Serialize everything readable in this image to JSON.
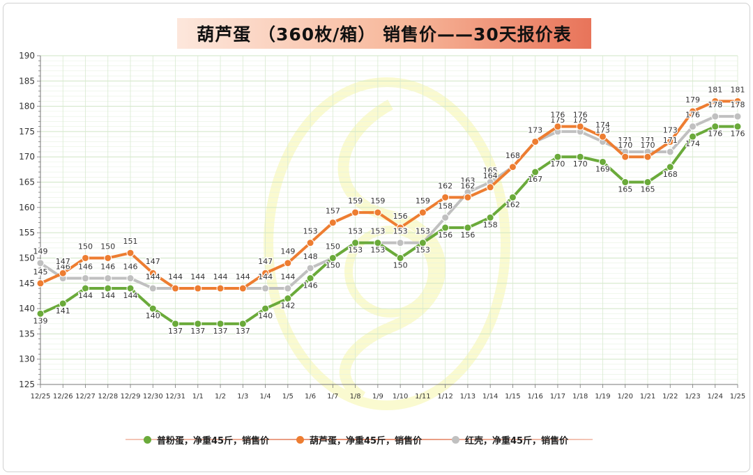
{
  "title": "葫芦蛋 （360枚/箱） 销售价——30天报价表",
  "legend": [
    {
      "label": "普粉蛋，净重45斤，销售价",
      "color": "#6aaa3a"
    },
    {
      "label": "葫芦蛋，净重45斤，销售价",
      "color": "#ed7d31"
    },
    {
      "label": "红壳，净重45斤，销售价",
      "color": "#c0c0c0"
    }
  ],
  "chart_data": {
    "type": "line",
    "title": "葫芦蛋 （360枚/箱） 销售价——30天报价表",
    "xlabel": "",
    "ylabel": "",
    "ylim": [
      125,
      190
    ],
    "ytick_step": 5,
    "grid": true,
    "legend_position": "bottom",
    "categories": [
      "12/25",
      "12/26",
      "12/27",
      "12/28",
      "12/29",
      "12/30",
      "12/31",
      "1/1",
      "1/2",
      "1/3",
      "1/4",
      "1/5",
      "1/6",
      "1/7",
      "1/8",
      "1/9",
      "1/10",
      "1/11",
      "1/12",
      "1/13",
      "1/14",
      "1/15",
      "1/16",
      "1/17",
      "1/18",
      "1/19",
      "1/20",
      "1/21",
      "1/22",
      "1/23",
      "1/24",
      "1/25"
    ],
    "series": [
      {
        "name": "红壳，净重45斤，销售价",
        "color": "#c0c0c0",
        "values": [
          149,
          146,
          146,
          146,
          146,
          144,
          144,
          144,
          144,
          144,
          144,
          144,
          148,
          150,
          153,
          153,
          153,
          153,
          158,
          163,
          165,
          168,
          173,
          175,
          175,
          173,
          171,
          171,
          171,
          176,
          178,
          178
        ]
      },
      {
        "name": "葫芦蛋，净重45斤，销售价",
        "color": "#ed7d31",
        "values": [
          145,
          147,
          150,
          150,
          151,
          147,
          144,
          144,
          144,
          144,
          147,
          149,
          153,
          157,
          159,
          159,
          156,
          159,
          162,
          162,
          164,
          168,
          173,
          176,
          176,
          174,
          170,
          170,
          173,
          179,
          181,
          181
        ]
      },
      {
        "name": "普粉蛋，净重45斤，销售价",
        "color": "#6aaa3a",
        "values": [
          139,
          141,
          144,
          144,
          144,
          140,
          137,
          137,
          137,
          137,
          140,
          142,
          146,
          150,
          153,
          153,
          150,
          153,
          156,
          156,
          158,
          162,
          167,
          170,
          170,
          169,
          165,
          165,
          168,
          174,
          176,
          176
        ]
      }
    ]
  }
}
